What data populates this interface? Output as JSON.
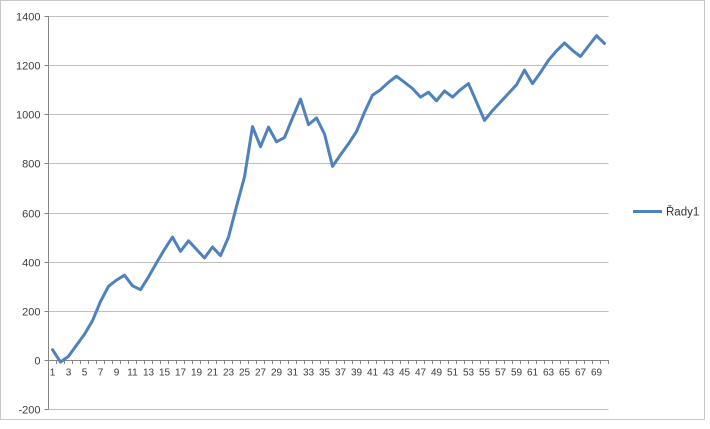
{
  "chart_data": {
    "type": "line",
    "title": "",
    "xlabel": "",
    "ylabel": "",
    "ylim": [
      -200,
      1400
    ],
    "y_ticks": [
      1400,
      1200,
      1000,
      800,
      600,
      400,
      200,
      0,
      -200
    ],
    "x_tick_labels": [
      "1",
      "3",
      "5",
      "7",
      "9",
      "11",
      "13",
      "15",
      "17",
      "19",
      "21",
      "23",
      "25",
      "27",
      "29",
      "31",
      "33",
      "35",
      "37",
      "39",
      "41",
      "43",
      "45",
      "47",
      "49",
      "51",
      "53",
      "55",
      "57",
      "59",
      "61",
      "63",
      "65",
      "67",
      "69"
    ],
    "grid": true,
    "legend_position": "right",
    "series": [
      {
        "name": "Řady1",
        "color": "#4F81BD",
        "values": [
          42,
          -8,
          15,
          60,
          105,
          160,
          238,
          300,
          325,
          345,
          302,
          286,
          338,
          395,
          450,
          500,
          442,
          485,
          450,
          415,
          460,
          425,
          500,
          625,
          745,
          950,
          868,
          948,
          888,
          905,
          985,
          1062,
          958,
          985,
          920,
          788,
          835,
          880,
          930,
          1008,
          1078,
          1100,
          1130,
          1155,
          1130,
          1105,
          1070,
          1090,
          1055,
          1095,
          1070,
          1100,
          1125,
          1050,
          975,
          1015,
          1050,
          1085,
          1120,
          1180,
          1125,
          1170,
          1220,
          1258,
          1290,
          1260,
          1235,
          1278,
          1320,
          1288
        ]
      }
    ],
    "colors": {
      "series_line": "#4F81BD",
      "gridline": "#bfbfbf",
      "axis_line": "#868686",
      "tick_label": "#3d3d3d",
      "chart_border": "#c9c9c9"
    }
  },
  "legend": {
    "label": "Řady1"
  }
}
